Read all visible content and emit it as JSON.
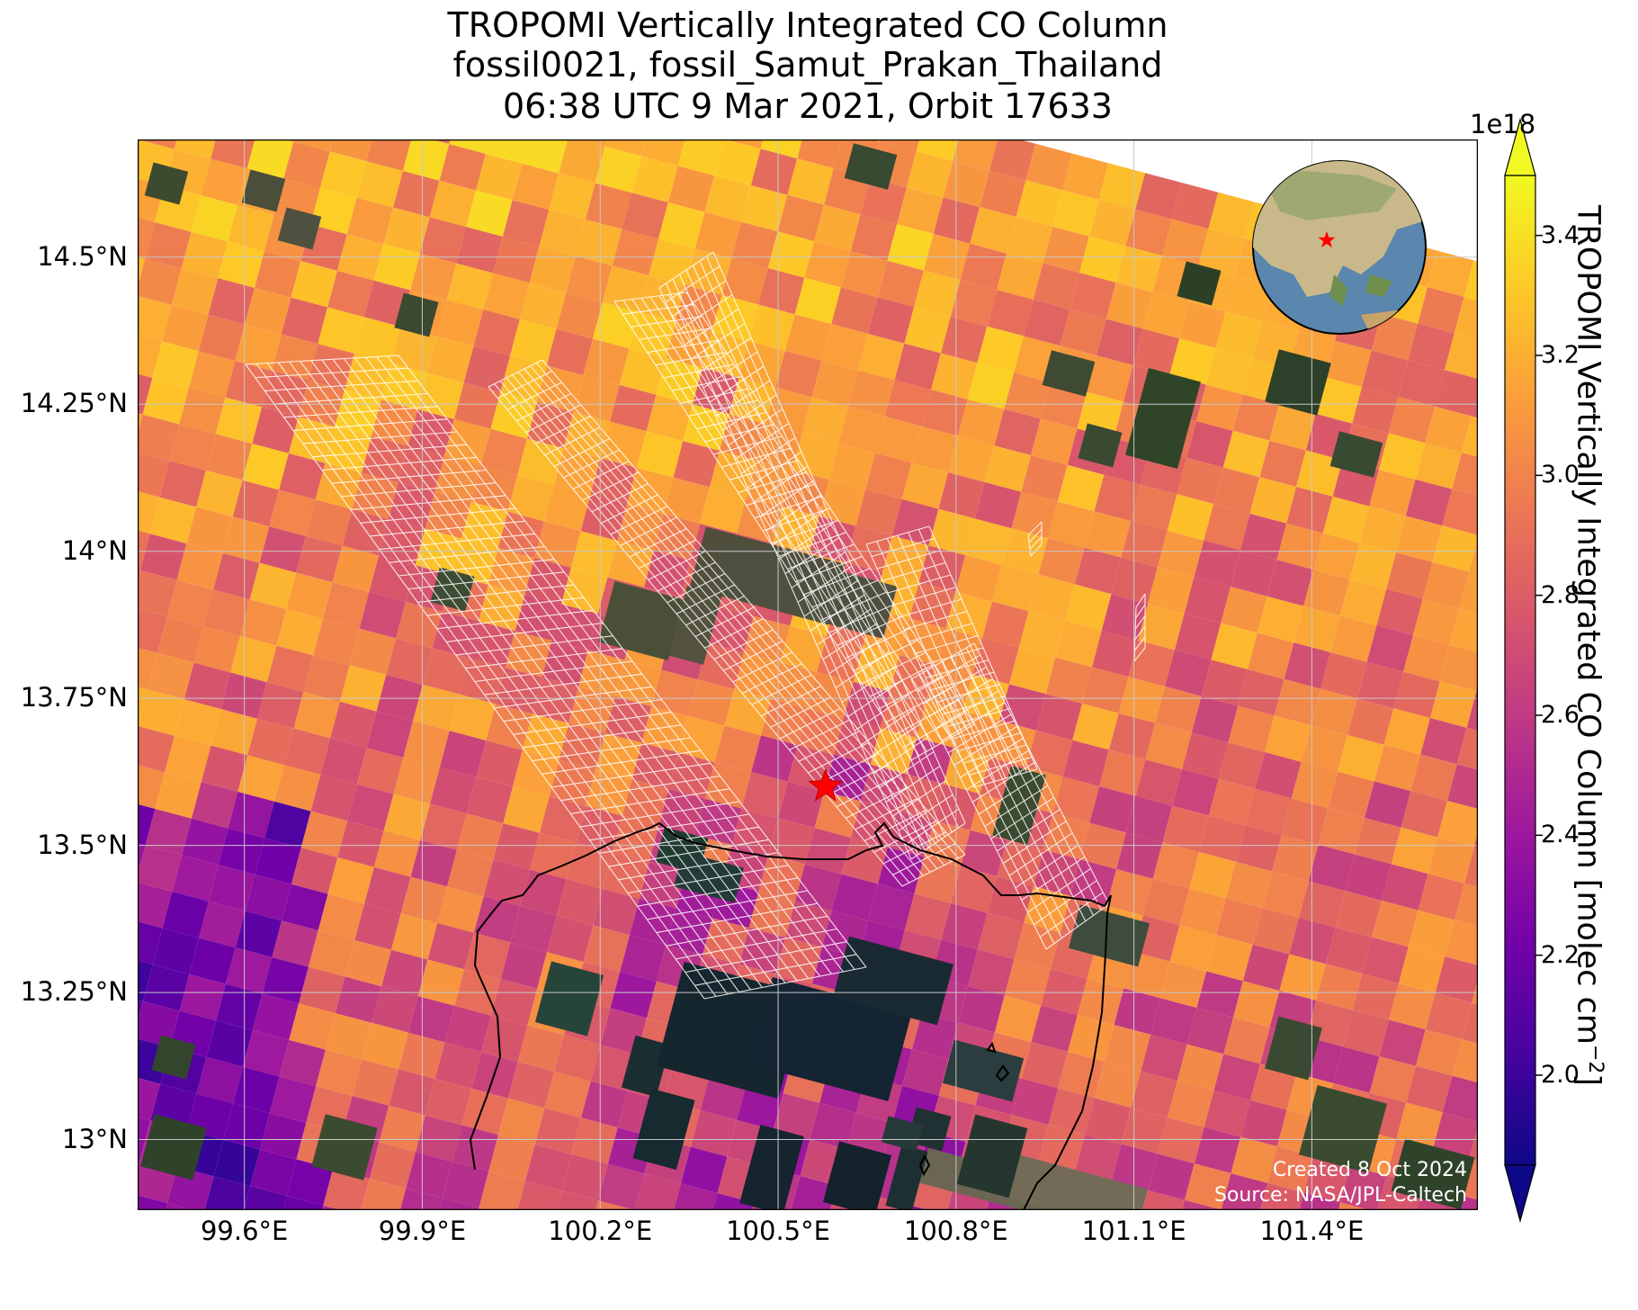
{
  "title": {
    "line1": "TROPOMI Vertically Integrated CO Column",
    "line2": "fossil0021, fossil_Samut_Prakan_Thailand",
    "line3": "06:38 UTC 9 Mar 2021, Orbit 17633"
  },
  "map": {
    "lon_range": [
      99.42,
      101.68
    ],
    "lat_range": [
      12.88,
      14.7
    ],
    "lon_ticks": [
      {
        "value": 99.6,
        "label": "99.6°E"
      },
      {
        "value": 99.9,
        "label": "99.9°E"
      },
      {
        "value": 100.2,
        "label": "100.2°E"
      },
      {
        "value": 100.5,
        "label": "100.5°E"
      },
      {
        "value": 100.8,
        "label": "100.8°E"
      },
      {
        "value": 101.1,
        "label": "101.1°E"
      },
      {
        "value": 101.4,
        "label": "101.4°E"
      }
    ],
    "lat_ticks": [
      {
        "value": 14.5,
        "label": "14.5°N"
      },
      {
        "value": 14.25,
        "label": "14.25°N"
      },
      {
        "value": 14.0,
        "label": "14°N"
      },
      {
        "value": 13.75,
        "label": "13.75°N"
      },
      {
        "value": 13.5,
        "label": "13.5°N"
      },
      {
        "value": 13.25,
        "label": "13.25°N"
      },
      {
        "value": 13.0,
        "label": "13°N"
      }
    ],
    "gridlines": true,
    "target_marker": {
      "lon": 100.58,
      "lat": 13.6,
      "symbol": "star",
      "color": "#ff0000"
    },
    "coastline_color": "#000000",
    "gridline_color": "#c8c8c8",
    "basemap": "satellite imagery",
    "inset_globe": {
      "centered_on": "Asia",
      "placement": "top-right",
      "marker_color": "#ff0000"
    }
  },
  "colorbar": {
    "label": "TROPOMI Vertically Integrated CO Column [molec cm$^{-2}$]",
    "exponent": "1e18",
    "colormap": "plasma",
    "vmin": 1.85,
    "vmax": 3.5,
    "extend": "both",
    "ticks": [
      {
        "value": 2.0,
        "label": "2.0"
      },
      {
        "value": 2.2,
        "label": "2.2"
      },
      {
        "value": 2.4,
        "label": "2.4"
      },
      {
        "value": 2.6,
        "label": "2.6"
      },
      {
        "value": 2.8,
        "label": "2.8"
      },
      {
        "value": 3.0,
        "label": "3.0"
      },
      {
        "value": 3.2,
        "label": "3.2"
      },
      {
        "value": 3.4,
        "label": "3.4"
      }
    ],
    "colors": [
      "#0d0887",
      "#46039f",
      "#7201a8",
      "#9c179e",
      "#bd3786",
      "#d8576b",
      "#ed7953",
      "#fb9f3a",
      "#fdca26",
      "#f0f921"
    ]
  },
  "credits": {
    "created": "Created 8 Oct 2024",
    "source": "Source: NASA/JPL-Caltech"
  }
}
